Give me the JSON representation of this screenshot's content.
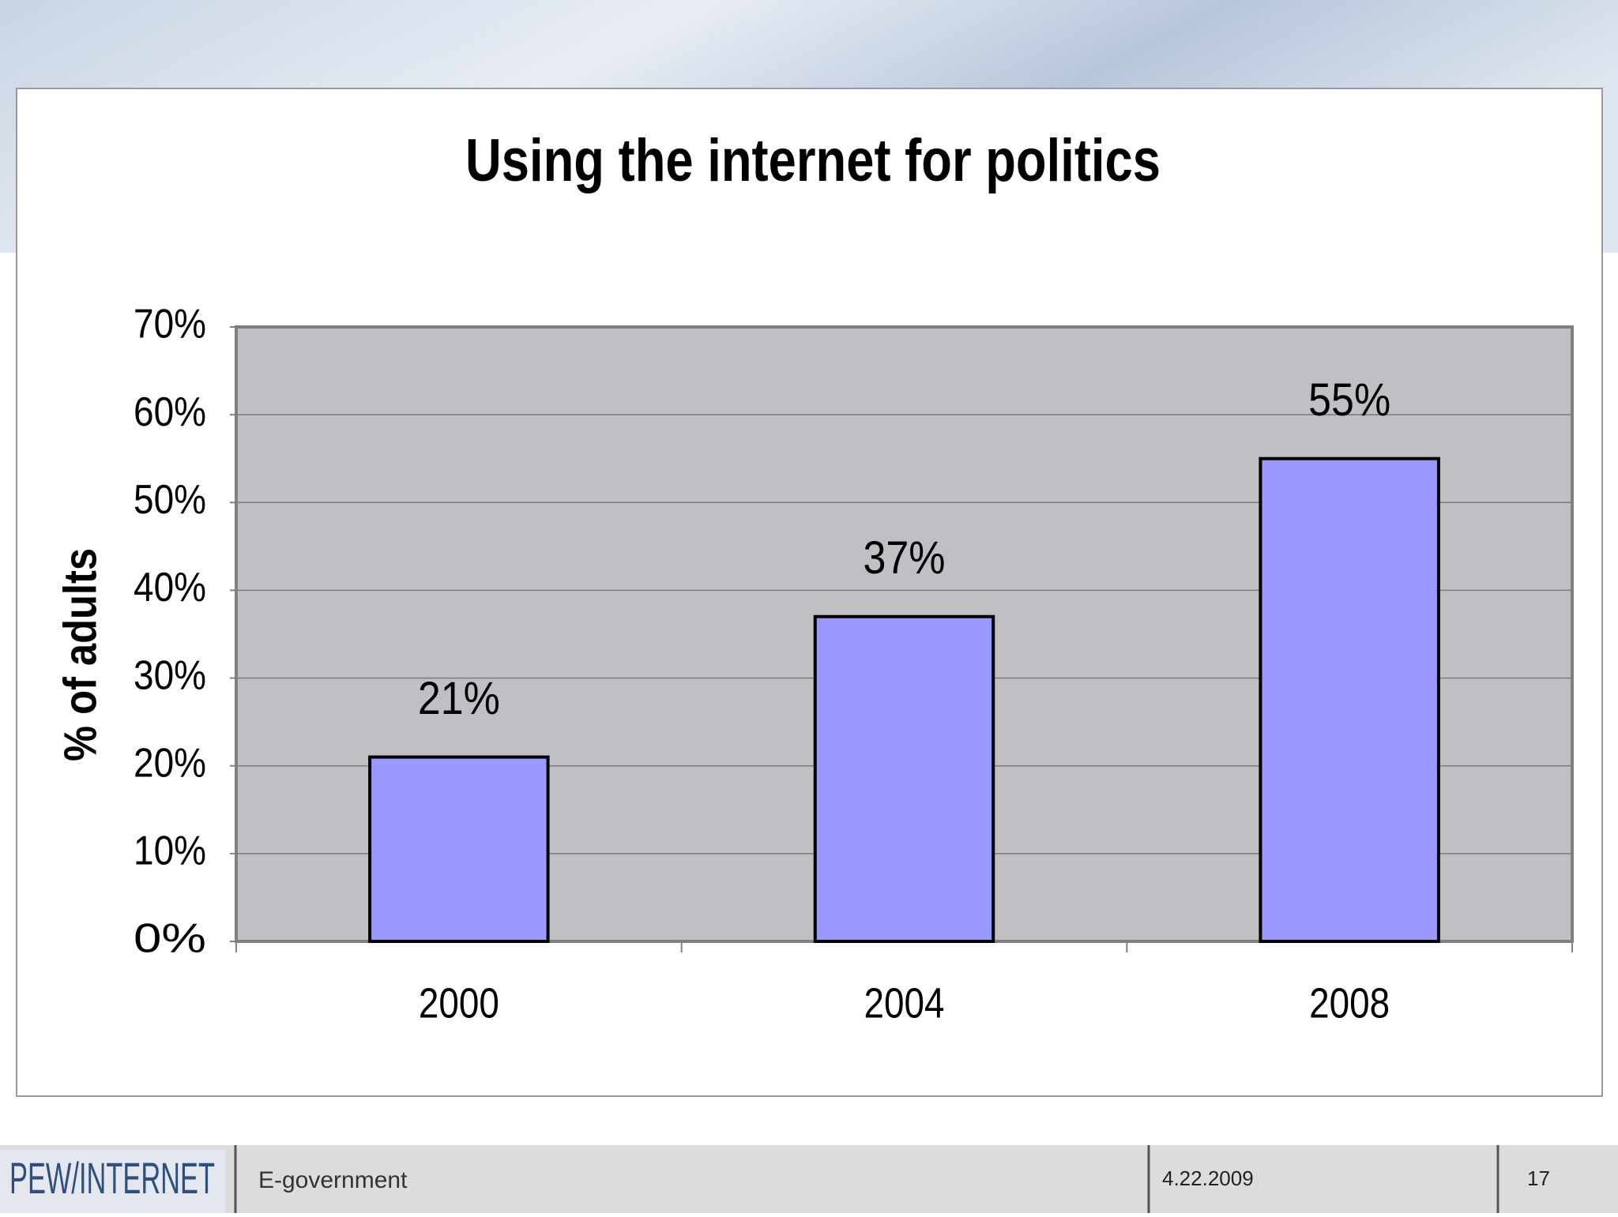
{
  "chart_data": {
    "type": "bar",
    "title": "Using the internet for politics",
    "y_label": "% of adults",
    "categories": [
      "2000",
      "2004",
      "2008"
    ],
    "values": [
      21,
      37,
      55
    ],
    "value_labels": [
      "21%",
      "37%",
      "55%"
    ],
    "color": "#9999ff",
    "ylim": [
      0,
      70
    ],
    "yticks": [
      {
        "value": 0,
        "label": "0%"
      },
      {
        "value": 10,
        "label": "10%"
      },
      {
        "value": 20,
        "label": "20%"
      },
      {
        "value": 30,
        "label": "30%"
      },
      {
        "value": 40,
        "label": "40%"
      },
      {
        "value": 50,
        "label": "50%"
      },
      {
        "value": 60,
        "label": "60%"
      },
      {
        "value": 70,
        "label": "70%"
      }
    ],
    "grid": true
  },
  "footer": {
    "logo": "PEW/INTERNET",
    "topic": "E-government",
    "date": "4.22.2009",
    "page": "17"
  }
}
